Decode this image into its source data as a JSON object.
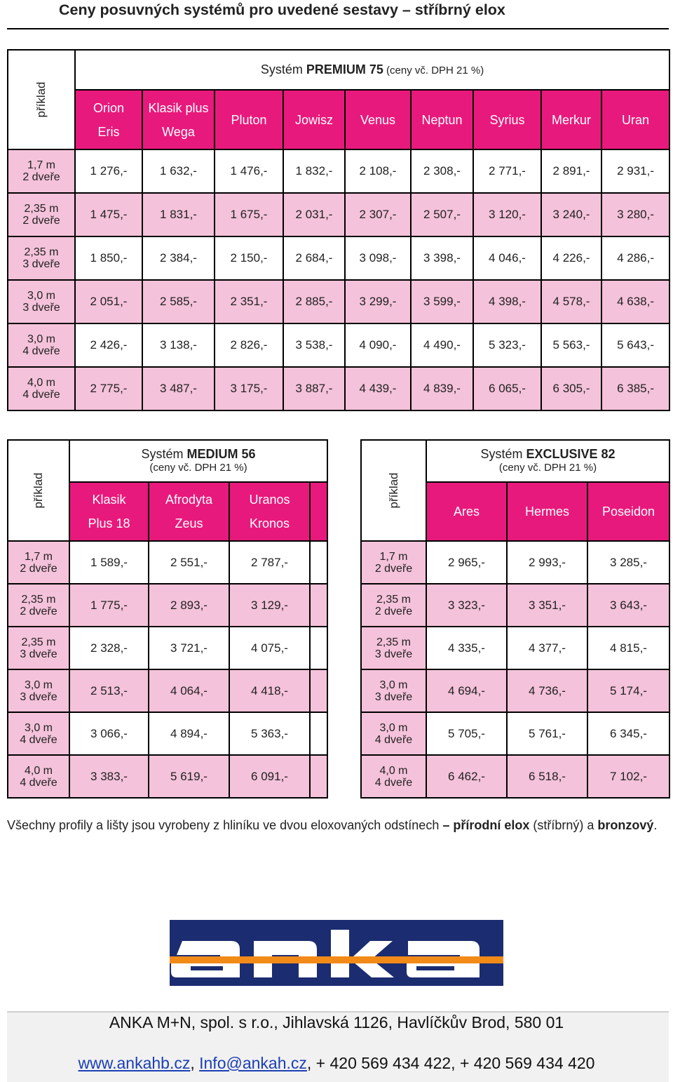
{
  "page": {
    "title": "Ceny posuvných systémů pro uvedené sestavy – stříbrný elox"
  },
  "colors": {
    "magenta": "#e8197c",
    "light_pink": "#f4c2da",
    "logo_blue": "#1b2c70",
    "logo_orange": "#f28a17"
  },
  "premium": {
    "example_label": "příklad",
    "title_pre": "Systém ",
    "title_bold": "PREMIUM 75",
    "title_small": " (ceny vč. DPH 21 %)",
    "headers": [
      {
        "l1": "Orion",
        "l2": "Eris"
      },
      {
        "l1": "Klasik plus",
        "l2": "Wega"
      },
      {
        "l1": "Pluton"
      },
      {
        "l1": "Jowisz"
      },
      {
        "l1": "Venus"
      },
      {
        "l1": "Neptun"
      },
      {
        "l1": "Syrius"
      },
      {
        "l1": "Merkur"
      },
      {
        "l1": "Uran"
      }
    ],
    "rows": [
      {
        "l1": "1,7 m",
        "l2": "2 dveře",
        "prices": [
          "1 276,-",
          "1 632,-",
          "1 476,-",
          "1 832,-",
          "2 108,-",
          "2 308,-",
          "2 771,-",
          "2 891,-",
          "2 931,-"
        ]
      },
      {
        "l1": "2,35 m",
        "l2": "2 dveře",
        "prices": [
          "1 475,-",
          "1 831,-",
          "1 675,-",
          "2 031,-",
          "2 307,-",
          "2 507,-",
          "3 120,-",
          "3 240,-",
          "3 280,-"
        ]
      },
      {
        "l1": "2,35 m",
        "l2": "3 dveře",
        "prices": [
          "1 850,-",
          "2 384,-",
          "2 150,-",
          "2 684,-",
          "3 098,-",
          "3 398,-",
          "4 046,-",
          "4 226,-",
          "4 286,-"
        ]
      },
      {
        "l1": "3,0 m",
        "l2": "3 dveře",
        "prices": [
          "2 051,-",
          "2 585,-",
          "2 351,-",
          "2 885,-",
          "3 299,-",
          "3 599,-",
          "4 398,-",
          "4 578,-",
          "4 638,-"
        ]
      },
      {
        "l1": "3,0 m",
        "l2": "4 dveře",
        "prices": [
          "2 426,-",
          "3 138,-",
          "2 826,-",
          "3 538,-",
          "4 090,-",
          "4 490,-",
          "5 323,-",
          "5 563,-",
          "5 643,-"
        ]
      },
      {
        "l1": "4,0 m",
        "l2": "4 dveře",
        "prices": [
          "2 775,-",
          "3 487,-",
          "3 175,-",
          "3 887,-",
          "4 439,-",
          "4 839,-",
          "6 065,-",
          "6 305,-",
          "6 385,-"
        ]
      }
    ]
  },
  "medium": {
    "example_label": "příklad",
    "title_pre": "Systém ",
    "title_bold": "MEDIUM 56",
    "title_small": "(ceny vč. DPH 21 %)",
    "headers": [
      {
        "l1": "Klasik",
        "l2": "Plus 18"
      },
      {
        "l1": "Afrodyta",
        "l2": "Zeus"
      },
      {
        "l1": "Uranos",
        "l2": "Kronos"
      }
    ],
    "rows": [
      {
        "l1": "1,7 m",
        "l2": "2 dveře",
        "prices": [
          "1 589,-",
          "2 551,-",
          "2 787,-"
        ]
      },
      {
        "l1": "2,35 m",
        "l2": "2 dveře",
        "prices": [
          "1 775,-",
          "2 893,-",
          "3 129,-"
        ]
      },
      {
        "l1": "2,35 m",
        "l2": "3 dveře",
        "prices": [
          "2 328,-",
          "3 721,-",
          "4 075,-"
        ]
      },
      {
        "l1": "3,0 m",
        "l2": "3 dveře",
        "prices": [
          "2 513,-",
          "4 064,-",
          "4 418,-"
        ]
      },
      {
        "l1": "3,0 m",
        "l2": "4 dveře",
        "prices": [
          "3 066,-",
          "4 894,-",
          "5 363,-"
        ]
      },
      {
        "l1": "4,0 m",
        "l2": "4 dveře",
        "prices": [
          "3 383,-",
          "5 619,-",
          "6 091,-"
        ]
      }
    ]
  },
  "exclusive": {
    "example_label": "příklad",
    "title_pre": "Systém ",
    "title_bold": "EXCLUSIVE 82",
    "title_small": "(ceny vč. DPH 21 %)",
    "headers": [
      {
        "l1": "Ares"
      },
      {
        "l1": "Hermes"
      },
      {
        "l1": "Poseidon"
      }
    ],
    "rows": [
      {
        "l1": "1,7 m",
        "l2": "2 dveře",
        "prices": [
          "2 965,-",
          "2 993,-",
          "3 285,-"
        ]
      },
      {
        "l1": "2,35 m",
        "l2": "2 dveře",
        "prices": [
          "3 323,-",
          "3 351,-",
          "3 643,-"
        ]
      },
      {
        "l1": "2,35 m",
        "l2": "3 dveře",
        "prices": [
          "4 335,-",
          "4 377,-",
          "4 815,-"
        ]
      },
      {
        "l1": "3,0 m",
        "l2": "3 dveře",
        "prices": [
          "4 694,-",
          "4 736,-",
          "5 174,-"
        ]
      },
      {
        "l1": "3,0 m",
        "l2": "4 dveře",
        "prices": [
          "5 705,-",
          "5 761,-",
          "6 345,-"
        ]
      },
      {
        "l1": "4,0 m",
        "l2": "4 dveře",
        "prices": [
          "6 462,-",
          "6 518,-",
          "7 102,-"
        ]
      }
    ]
  },
  "note": {
    "pre": "Všechny profily a lišty jsou vyrobeny z hliníku ve dvou eloxovaných odstínech ",
    "dash": "– ",
    "bold": "přírodní elox",
    "mid": " (stříbrný) a ",
    "bold2": "bronzový",
    "end": "."
  },
  "logo": {
    "text": "anka",
    "icon": "anka-logo"
  },
  "footer": {
    "address": "ANKA M+N, spol. s r.o., Jihlavská 1126, Havlíčkův Brod, 580 01",
    "web": "www.ankahb.cz",
    "sep1": ", ",
    "email": "Info@ankah.cz",
    "phones": ", + 420 569 434 422, + 420 569 434 420"
  }
}
